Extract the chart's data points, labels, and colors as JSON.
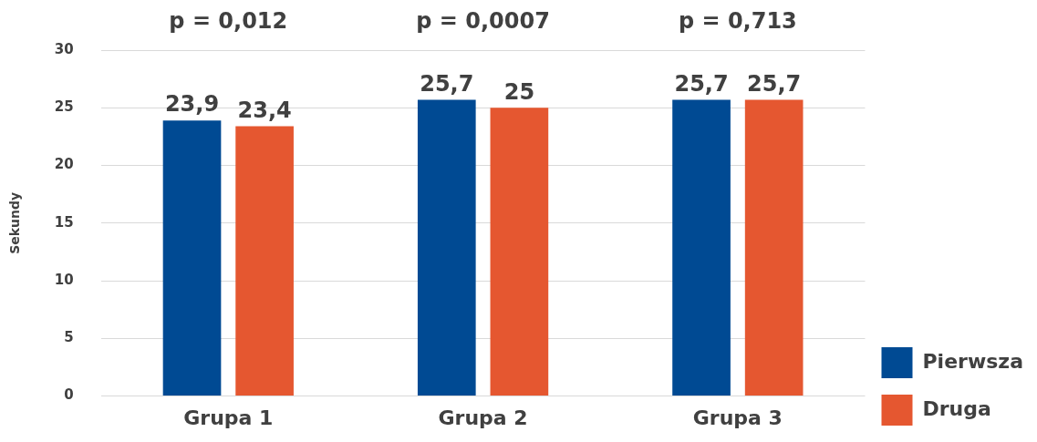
{
  "chart_data": {
    "type": "bar",
    "ylabel": "Sekundy",
    "categories": [
      "Grupa 1",
      "Grupa 2",
      "Grupa 3"
    ],
    "series": [
      {
        "name": "Pierwsza",
        "color": "#004a93",
        "values": [
          23.9,
          25.7,
          25.7
        ],
        "value_labels": [
          "23,9",
          "25,7",
          "25,7"
        ]
      },
      {
        "name": "Druga",
        "color": "#e55730",
        "values": [
          23.4,
          25,
          25.7
        ],
        "value_labels": [
          "23,4",
          "25",
          "25,7"
        ]
      }
    ],
    "ylim": [
      0,
      30
    ],
    "yticks": [
      0,
      5,
      10,
      15,
      20,
      25,
      30
    ],
    "grid": "y",
    "legend": "bottom right",
    "annotations": [
      "p = 0,012",
      "p = 0,0007",
      "p = 0,713"
    ]
  }
}
